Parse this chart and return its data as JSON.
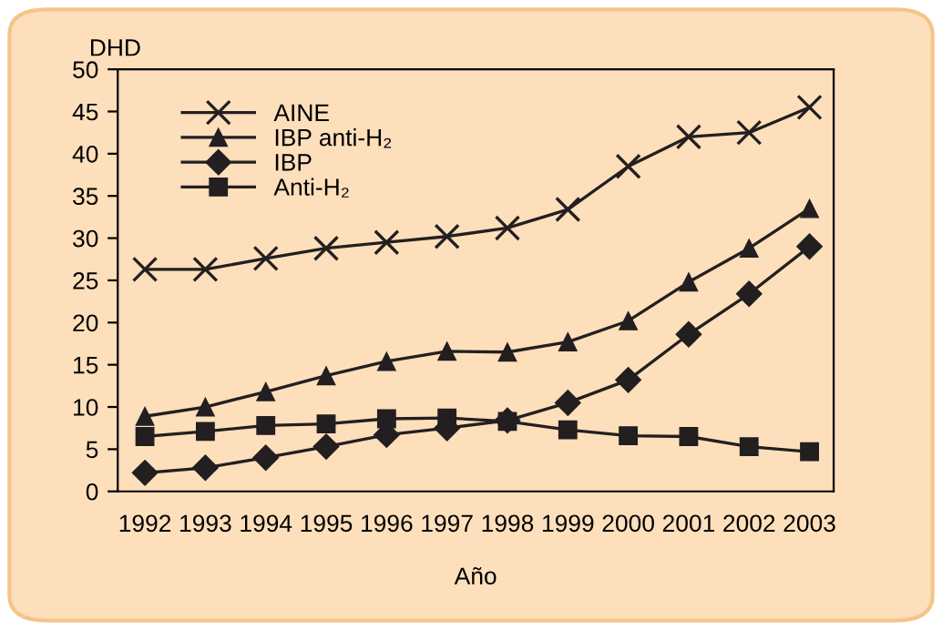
{
  "chart_data": {
    "type": "line",
    "xlabel": "Año",
    "ylabel": "DHD",
    "categories": [
      "1992",
      "1993",
      "1994",
      "1995",
      "1996",
      "1997",
      "1998",
      "1999",
      "2000",
      "2001",
      "2002",
      "2003"
    ],
    "series": [
      {
        "name": "AINE",
        "color": "#231f20",
        "marker": "cross",
        "values": [
          26.3,
          26.3,
          27.6,
          28.8,
          29.5,
          30.2,
          31.2,
          33.4,
          38.5,
          42,
          42.5,
          45.5
        ]
      },
      {
        "name": "IBP anti-H₂",
        "color": "#231f20",
        "marker": "triangle",
        "values": [
          8.9,
          10,
          11.8,
          13.7,
          15.4,
          16.6,
          16.5,
          17.7,
          20.2,
          24.8,
          28.8,
          33.5
        ]
      },
      {
        "name": "IBP",
        "color": "#231f20",
        "marker": "diamond",
        "values": [
          2.2,
          2.8,
          4.0,
          5.3,
          6.7,
          7.5,
          8.4,
          10.5,
          13.2,
          18.6,
          23.4,
          29
        ]
      },
      {
        "name": "Anti-H₂",
        "color": "#231f20",
        "marker": "square",
        "values": [
          6.5,
          7.1,
          7.8,
          8.0,
          8.6,
          8.7,
          8.3,
          7.3,
          6.6,
          6.5,
          5.3,
          4.7
        ]
      }
    ],
    "ylim": [
      0,
      50
    ],
    "yticks": [
      0,
      5,
      10,
      15,
      20,
      25,
      30,
      35,
      40,
      45,
      50
    ],
    "grid": false,
    "legend": "top left",
    "line_style": "solid"
  }
}
